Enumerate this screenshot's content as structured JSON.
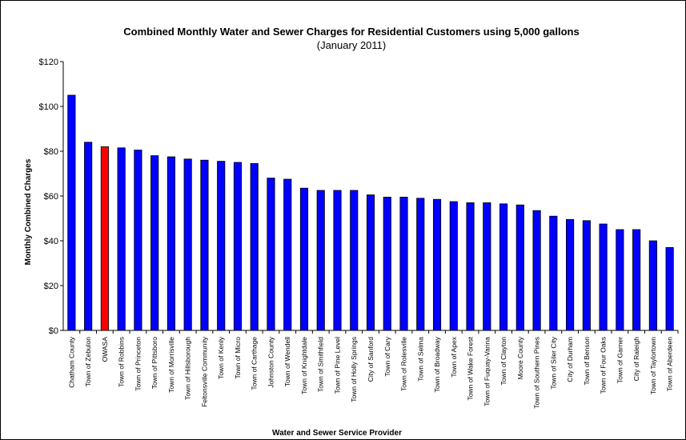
{
  "chart_data": {
    "type": "bar",
    "title": "Combined Monthly Water and Sewer Charges for Residential Customers using  5,000 gallons",
    "subtitle": "(January 2011)",
    "xlabel": "Water and Sewer Service Provider",
    "ylabel": "Monthly Combined Charges",
    "ylim": [
      0,
      120
    ],
    "yticks": [
      0,
      20,
      40,
      60,
      80,
      100,
      120
    ],
    "ytick_labels": [
      "$0",
      "$20",
      "$40",
      "$60",
      "$80",
      "$100",
      "$120"
    ],
    "grid": false,
    "legend": false,
    "bar_color": "#0000ff",
    "highlight_color": "#ff0000",
    "highlight_category": "OWASA",
    "categories": [
      "Chatham County",
      "Town of Zebulon",
      "OWASA",
      "Town of Robbins",
      "Town of Princeton",
      "Town of Pittsboro",
      "Town of Morrisville",
      "Town of Hillsborough",
      "Feltonsville Community",
      "Town of Kenly",
      "Town of Micro",
      "Town of Carthage",
      "Johnston County",
      "Town of Wendell",
      "Town of Knightdale",
      "Town of Smithfield",
      "Town of Pine Level",
      "Town of Holly Springs",
      "City of Sanford",
      "Town of Cary",
      "Town of Rolesville",
      "Town of Selma",
      "Town of Broadway",
      "Town of Apex",
      "Town of Wake Forest",
      "Town of Fuquay-Varina",
      "Town of Clayton",
      "Moore County",
      "Town of Southern Pines",
      "Town of Siler City",
      "City of Durham",
      "Town of Benson",
      "Town of Four Oaks",
      "Town of Garner",
      "City of Raleigh",
      "Town of Taylortown",
      "Town of Aberdeen"
    ],
    "values": [
      105,
      84,
      82,
      81.5,
      80.5,
      78,
      77.5,
      76.5,
      76,
      75.5,
      75,
      74.5,
      68,
      67.5,
      63.5,
      62.5,
      62.5,
      62.5,
      60.5,
      59.5,
      59.5,
      59,
      58.5,
      57.5,
      57,
      57,
      56.5,
      56,
      53.5,
      51,
      49.5,
      49,
      47.5,
      45,
      45,
      40,
      37
    ]
  }
}
